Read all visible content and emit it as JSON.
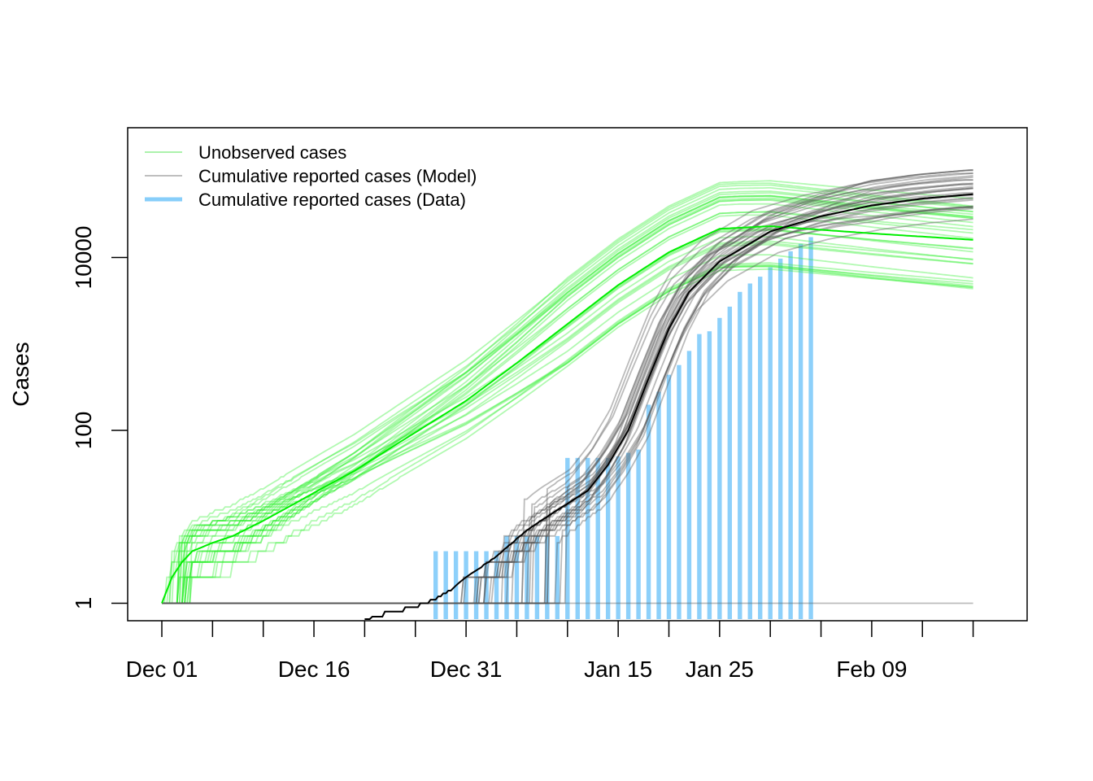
{
  "chart_data": {
    "type": "line",
    "ylabel": "Cases",
    "xlabel": "",
    "y_scale": "log",
    "ylim": [
      0.6,
      60000
    ],
    "xlim": [
      "2019-11-28",
      "2020-02-20"
    ],
    "y_ticks": [
      {
        "value": 1,
        "label": "1"
      },
      {
        "value": 100,
        "label": "100"
      },
      {
        "value": 10000,
        "label": "10000"
      }
    ],
    "x_ticks": [
      "2019-12-01",
      "2019-12-06",
      "2019-12-11",
      "2019-12-16",
      "2019-12-21",
      "2019-12-26",
      "2019-12-31",
      "2020-01-05",
      "2020-01-10",
      "2020-01-15",
      "2020-01-20",
      "2020-01-25",
      "2020-01-30",
      "2020-02-04",
      "2020-02-09",
      "2020-02-14",
      "2020-02-19"
    ],
    "x_tick_labels": [
      {
        "date": "2019-12-01",
        "label": "Dec 01"
      },
      {
        "date": "2019-12-16",
        "label": "Dec 16"
      },
      {
        "date": "2019-12-31",
        "label": "Dec 31"
      },
      {
        "date": "2020-01-15",
        "label": "Jan 15"
      },
      {
        "date": "2020-01-25",
        "label": "Jan 25"
      },
      {
        "date": "2020-02-09",
        "label": "Feb 09"
      }
    ],
    "legend": {
      "position": "top-left",
      "entries": [
        {
          "label": "Unobserved cases",
          "color": "#22dd22"
        },
        {
          "label": "Cumulative reported cases (Model)",
          "color": "#555555"
        },
        {
          "label": "Cumulative reported cases (Data)",
          "color": "#87cefa"
        }
      ]
    },
    "colors": {
      "unobserved_mean": "#00ee00",
      "unobserved_sims": "#33ee33",
      "model_mean": "#000000",
      "model_sims": "#555555",
      "data_bars": "#87cefa"
    },
    "series": [
      {
        "name": "Unobserved cases",
        "points": [
          {
            "x": "2019-12-01",
            "y": 1
          },
          {
            "x": "2019-12-02",
            "y": 2
          },
          {
            "x": "2019-12-03",
            "y": 3
          },
          {
            "x": "2019-12-04",
            "y": 4
          },
          {
            "x": "2019-12-06",
            "y": 5
          },
          {
            "x": "2019-12-08",
            "y": 6
          },
          {
            "x": "2019-12-11",
            "y": 9
          },
          {
            "x": "2019-12-14",
            "y": 14
          },
          {
            "x": "2019-12-17",
            "y": 22
          },
          {
            "x": "2019-12-20",
            "y": 34
          },
          {
            "x": "2019-12-25",
            "y": 80
          },
          {
            "x": "2019-12-31",
            "y": 220
          },
          {
            "x": "2020-01-05",
            "y": 600
          },
          {
            "x": "2020-01-10",
            "y": 1700
          },
          {
            "x": "2020-01-15",
            "y": 4800
          },
          {
            "x": "2020-01-20",
            "y": 11500
          },
          {
            "x": "2020-01-25",
            "y": 21500
          },
          {
            "x": "2020-01-30",
            "y": 23000
          },
          {
            "x": "2020-02-09",
            "y": 19000
          },
          {
            "x": "2020-02-19",
            "y": 16000
          }
        ]
      },
      {
        "name": "Cumulative reported cases (Model)",
        "points": [
          {
            "x": "2019-12-21",
            "y": 0.6
          },
          {
            "x": "2019-12-23",
            "y": 0.75
          },
          {
            "x": "2019-12-25",
            "y": 0.85
          },
          {
            "x": "2019-12-27",
            "y": 1
          },
          {
            "x": "2019-12-29",
            "y": 1.3
          },
          {
            "x": "2019-12-31",
            "y": 2
          },
          {
            "x": "2020-01-03",
            "y": 3.5
          },
          {
            "x": "2020-01-06",
            "y": 7
          },
          {
            "x": "2020-01-09",
            "y": 12
          },
          {
            "x": "2020-01-12",
            "y": 20
          },
          {
            "x": "2020-01-14",
            "y": 40
          },
          {
            "x": "2020-01-16",
            "y": 100
          },
          {
            "x": "2020-01-18",
            "y": 400
          },
          {
            "x": "2020-01-20",
            "y": 1500
          },
          {
            "x": "2020-01-22",
            "y": 4000
          },
          {
            "x": "2020-01-25",
            "y": 9000
          },
          {
            "x": "2020-01-30",
            "y": 20000
          },
          {
            "x": "2020-02-04",
            "y": 30000
          },
          {
            "x": "2020-02-09",
            "y": 40000
          },
          {
            "x": "2020-02-14",
            "y": 48000
          },
          {
            "x": "2020-02-19",
            "y": 54000
          }
        ]
      },
      {
        "name": "Cumulative reported cases (Data)",
        "type": "bar",
        "points": [
          {
            "x": "2019-12-28",
            "y": 4
          },
          {
            "x": "2019-12-29",
            "y": 4
          },
          {
            "x": "2019-12-30",
            "y": 4
          },
          {
            "x": "2019-12-31",
            "y": 4
          },
          {
            "x": "2020-01-01",
            "y": 4
          },
          {
            "x": "2020-01-02",
            "y": 4
          },
          {
            "x": "2020-01-03",
            "y": 4
          },
          {
            "x": "2020-01-04",
            "y": 6
          },
          {
            "x": "2020-01-05",
            "y": 6
          },
          {
            "x": "2020-01-06",
            "y": 6
          },
          {
            "x": "2020-01-07",
            "y": 6
          },
          {
            "x": "2020-01-08",
            "y": 6
          },
          {
            "x": "2020-01-09",
            "y": 6
          },
          {
            "x": "2020-01-10",
            "y": 48
          },
          {
            "x": "2020-01-11",
            "y": 48
          },
          {
            "x": "2020-01-12",
            "y": 48
          },
          {
            "x": "2020-01-13",
            "y": 48
          },
          {
            "x": "2020-01-14",
            "y": 48
          },
          {
            "x": "2020-01-15",
            "y": 50
          },
          {
            "x": "2020-01-16",
            "y": 55
          },
          {
            "x": "2020-01-17",
            "y": 60
          },
          {
            "x": "2020-01-18",
            "y": 198
          },
          {
            "x": "2020-01-19",
            "y": 280
          },
          {
            "x": "2020-01-20",
            "y": 440
          },
          {
            "x": "2020-01-21",
            "y": 570
          },
          {
            "x": "2020-01-22",
            "y": 830
          },
          {
            "x": "2020-01-23",
            "y": 1300
          },
          {
            "x": "2020-01-24",
            "y": 1400
          },
          {
            "x": "2020-01-25",
            "y": 2000
          },
          {
            "x": "2020-01-26",
            "y": 2700
          },
          {
            "x": "2020-01-27",
            "y": 4000
          },
          {
            "x": "2020-01-28",
            "y": 5000
          },
          {
            "x": "2020-01-29",
            "y": 6000
          },
          {
            "x": "2020-01-30",
            "y": 7700
          },
          {
            "x": "2020-01-31",
            "y": 9700
          },
          {
            "x": "2020-02-01",
            "y": 11800
          },
          {
            "x": "2020-02-02",
            "y": 14400
          },
          {
            "x": "2020-02-03",
            "y": 17200
          }
        ]
      }
    ]
  }
}
